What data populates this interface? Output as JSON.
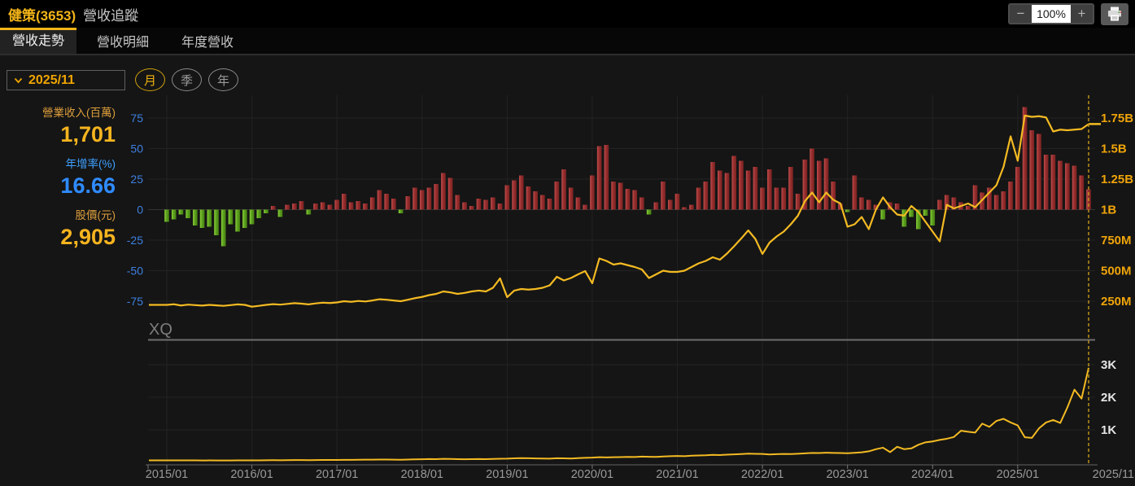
{
  "header": {
    "stock": "健策(3653)",
    "page_title": "營收追蹤",
    "zoom_out": "−",
    "zoom_value": "100%",
    "zoom_in": "+"
  },
  "tabs": [
    {
      "label": "營收走勢",
      "active": true
    },
    {
      "label": "營收明細",
      "active": false
    },
    {
      "label": "年度營收",
      "active": false
    }
  ],
  "controls": {
    "date_value": "2025/11",
    "periods": [
      {
        "label": "月",
        "active": true
      },
      {
        "label": "季",
        "active": false
      },
      {
        "label": "年",
        "active": false
      }
    ]
  },
  "stats": {
    "revenue_label": "營業收入(百萬)",
    "revenue_value": "1,701",
    "growth_label": "年增率(%)",
    "growth_value": "16.66",
    "price_label": "股價(元)",
    "price_value": "2,905"
  },
  "colors": {
    "accent_yellow": "#f2b418",
    "line_yellow": "#f3ba22",
    "bar_up_red": "#9a2f2f",
    "bar_down_green": "#5fa51f",
    "axis_blue": "#3d7fe0",
    "axis_yellow": "#efa40a"
  },
  "chart_data": [
    {
      "type": "bar",
      "name": "年增率(%) + 營業收入",
      "x_interval": "monthly",
      "x_start": "2015/01",
      "x_end": "2025/11",
      "x_tick_labels": [
        "2015/01",
        "2016/01",
        "2017/01",
        "2018/01",
        "2019/01",
        "2020/01",
        "2021/01",
        "2022/01",
        "2023/01",
        "2024/01",
        "2025/01",
        "2025/11"
      ],
      "left_axis": {
        "name": "年增率(%)",
        "ticks": [
          75,
          50,
          25,
          0,
          -25,
          -50,
          -75
        ]
      },
      "right_axis": {
        "name": "營業收入",
        "tick_labels": [
          "1.75B",
          "1.5B",
          "1.25B",
          "1B",
          "750M",
          "500M",
          "250M"
        ],
        "tick_values_M": [
          1750,
          1500,
          1250,
          1000,
          750,
          500,
          250
        ]
      },
      "marker_line": {
        "x": "2025/11",
        "style": "dashed"
      },
      "watermark": "XQ",
      "grid": true,
      "legend": "none",
      "series": [
        {
          "name": "年增率(%)",
          "type": "bar",
          "values": [
            -10,
            -8,
            -4,
            -7,
            -13,
            -15,
            -14,
            -21,
            -30,
            -12,
            -18,
            -15,
            -12,
            -7,
            -3,
            3,
            -6,
            4,
            5,
            7,
            -4,
            5,
            6,
            4,
            8,
            13,
            6,
            7,
            5,
            10,
            16,
            13,
            9,
            -3,
            11,
            18,
            16,
            18,
            21,
            30,
            26,
            12,
            6,
            3,
            9,
            8,
            10,
            5,
            20,
            24,
            28,
            19,
            15,
            12,
            9,
            23,
            33,
            18,
            10,
            4,
            28,
            52,
            53,
            23,
            22,
            17,
            16,
            10,
            -4,
            6,
            23,
            8,
            13,
            2,
            4,
            18,
            23,
            39,
            32,
            30,
            44,
            40,
            32,
            35,
            18,
            33,
            18,
            18,
            35,
            13,
            41,
            50,
            40,
            42,
            23,
            5,
            -2,
            28,
            10,
            8,
            4,
            -8,
            6,
            5,
            -14,
            -6,
            -16,
            -5,
            -13,
            8,
            12,
            10,
            6,
            3,
            20,
            14,
            18,
            12,
            15,
            23,
            35,
            84,
            65,
            62,
            45,
            45,
            40,
            38,
            36,
            28,
            16.66
          ]
        },
        {
          "name": "營業收入(百萬)",
          "type": "line",
          "values": [
            220,
            225,
            215,
            222,
            218,
            214,
            220,
            216,
            212,
            218,
            224,
            220,
            205,
            212,
            220,
            226,
            222,
            228,
            234,
            230,
            224,
            232,
            238,
            235,
            240,
            250,
            245,
            252,
            248,
            256,
            266,
            262,
            256,
            250,
            262,
            275,
            285,
            300,
            310,
            330,
            322,
            310,
            318,
            330,
            337,
            330,
            360,
            437,
            283,
            337,
            350,
            345,
            350,
            360,
            380,
            450,
            420,
            440,
            470,
            497,
            397,
            600,
            580,
            550,
            560,
            545,
            530,
            510,
            440,
            470,
            500,
            490,
            490,
            500,
            530,
            560,
            580,
            610,
            590,
            640,
            700,
            763,
            830,
            760,
            637,
            730,
            780,
            820,
            880,
            950,
            1070,
            1140,
            1060,
            1140,
            1080,
            1050,
            860,
            880,
            940,
            840,
            1000,
            1100,
            1020,
            960,
            950,
            1030,
            980,
            900,
            820,
            740,
            1040,
            1010,
            1030,
            1050,
            1020,
            1080,
            1140,
            1200,
            1350,
            1600,
            1400,
            1770,
            1760,
            1765,
            1755,
            1640,
            1655,
            1650,
            1655,
            1660,
            1701
          ]
        }
      ]
    },
    {
      "type": "line",
      "name": "股價(元)",
      "x_interval": "monthly",
      "x_start": "2015/01",
      "x_end": "2025/11",
      "right_axis": {
        "tick_labels": [
          "3K",
          "2K",
          "1K"
        ],
        "tick_values": [
          3000,
          2000,
          1000
        ]
      },
      "grid": true,
      "values": [
        62,
        64,
        61,
        63,
        62,
        60,
        61,
        59,
        58,
        60,
        62,
        63,
        64,
        63,
        66,
        68,
        67,
        70,
        72,
        71,
        69,
        72,
        75,
        74,
        76,
        79,
        78,
        82,
        85,
        84,
        88,
        86,
        85,
        82,
        88,
        93,
        96,
        102,
        99,
        108,
        105,
        101,
        97,
        100,
        104,
        101,
        107,
        112,
        115,
        124,
        132,
        128,
        122,
        119,
        116,
        128,
        125,
        120,
        132,
        142,
        148,
        160,
        152,
        158,
        163,
        170,
        166,
        178,
        173,
        168,
        182,
        192,
        196,
        192,
        205,
        214,
        220,
        232,
        226,
        238,
        246,
        255,
        268,
        262,
        258,
        245,
        252,
        260,
        256,
        266,
        278,
        292,
        286,
        298,
        292,
        286,
        280,
        295,
        310,
        340,
        405,
        452,
        315,
        480,
        405,
        430,
        542,
        616,
        643,
        690,
        726,
        780,
        972,
        940,
        917,
        1191,
        1090,
        1274,
        1337,
        1227,
        1137,
        772,
        753,
        1046,
        1227,
        1301,
        1210,
        1685,
        2233,
        1959,
        2905
      ]
    }
  ]
}
